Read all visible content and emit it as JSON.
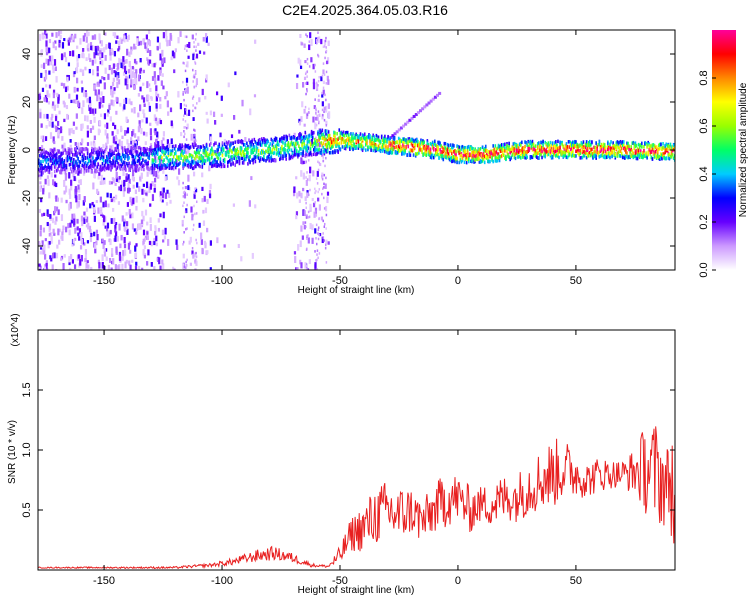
{
  "title": "C2E4.2025.364.05.03.R16",
  "chart_data": [
    {
      "type": "heatmap",
      "xlabel": "Height of straight line (km)",
      "ylabel": "Frequency (Hz)",
      "xlim": [
        -178,
        92
      ],
      "ylim": [
        -50,
        50
      ],
      "xticks": [
        -150,
        -100,
        -50,
        0,
        50
      ],
      "xtick_labels": [
        "-150",
        "-100",
        "-50",
        "0",
        "50"
      ],
      "yticks": [
        -40,
        -20,
        0,
        20,
        40
      ],
      "ytick_labels": [
        "-40",
        "-20",
        "0",
        "20",
        "40"
      ],
      "ridge_frequency": {
        "x": [
          -178,
          -150,
          -120,
          -100,
          -80,
          -60,
          -50,
          -40,
          -30,
          -20,
          -10,
          0,
          10,
          30,
          50,
          70,
          92
        ],
        "y": [
          -5,
          -4,
          -3,
          -2,
          0,
          3,
          4,
          3,
          2,
          1,
          0,
          -2,
          -2,
          0,
          0,
          0,
          -1
        ]
      },
      "colorbar": {
        "label": "Normalized spectral amplitude",
        "range": [
          0.0,
          1.0
        ],
        "ticks": [
          0.0,
          0.2,
          0.4,
          0.6,
          0.8
        ],
        "tick_labels": [
          "0.0",
          "0.2",
          "0.4",
          "0.6",
          "0.8"
        ],
        "colors": [
          "#ffffff",
          "#cc99ff",
          "#6600ff",
          "#0000ff",
          "#00ccff",
          "#00ff66",
          "#99ff00",
          "#ffff00",
          "#ff8800",
          "#ff0000",
          "#ff0099"
        ]
      }
    },
    {
      "type": "line",
      "xlabel": "Height of straight line (km)",
      "ylabel": "SNR (10 * v/v)",
      "y_multiplier": "(x10^4)",
      "xlim": [
        -178,
        92
      ],
      "ylim": [
        0,
        2.0
      ],
      "xticks": [
        -150,
        -100,
        -50,
        0,
        50
      ],
      "xtick_labels": [
        "-150",
        "-100",
        "-50",
        "0",
        "50"
      ],
      "yticks": [
        0.5,
        1.0,
        1.5
      ],
      "ytick_labels": [
        "0.5",
        "1.0",
        "1.5"
      ],
      "series": [
        {
          "name": "SNR",
          "color": "#e82020",
          "envelope_x": [
            -178,
            -150,
            -120,
            -105,
            -95,
            -85,
            -78,
            -70,
            -62,
            -55,
            -50,
            -45,
            -40,
            -35,
            -30,
            -25,
            -20,
            -15,
            -10,
            -5,
            0,
            5,
            10,
            15,
            20,
            25,
            30,
            35,
            40,
            45,
            50,
            55,
            60,
            65,
            70,
            75,
            80,
            85,
            88,
            90,
            92
          ],
          "envelope_mean": [
            0.02,
            0.02,
            0.02,
            0.04,
            0.07,
            0.12,
            0.14,
            0.1,
            0.04,
            0.03,
            0.12,
            0.3,
            0.35,
            0.45,
            0.5,
            0.45,
            0.5,
            0.4,
            0.5,
            0.6,
            0.6,
            0.5,
            0.55,
            0.55,
            0.6,
            0.6,
            0.7,
            0.75,
            0.8,
            0.85,
            0.8,
            0.75,
            0.8,
            0.8,
            0.8,
            0.82,
            0.85,
            0.8,
            0.7,
            0.75,
            0.6
          ],
          "envelope_amp": [
            0.005,
            0.006,
            0.008,
            0.015,
            0.03,
            0.05,
            0.06,
            0.04,
            0.015,
            0.01,
            0.08,
            0.15,
            0.2,
            0.25,
            0.25,
            0.25,
            0.2,
            0.2,
            0.2,
            0.25,
            0.2,
            0.2,
            0.15,
            0.2,
            0.2,
            0.2,
            0.25,
            0.25,
            0.3,
            0.25,
            0.2,
            0.15,
            0.15,
            0.12,
            0.12,
            0.2,
            0.4,
            0.45,
            0.35,
            0.3,
            0.9
          ]
        }
      ]
    }
  ]
}
